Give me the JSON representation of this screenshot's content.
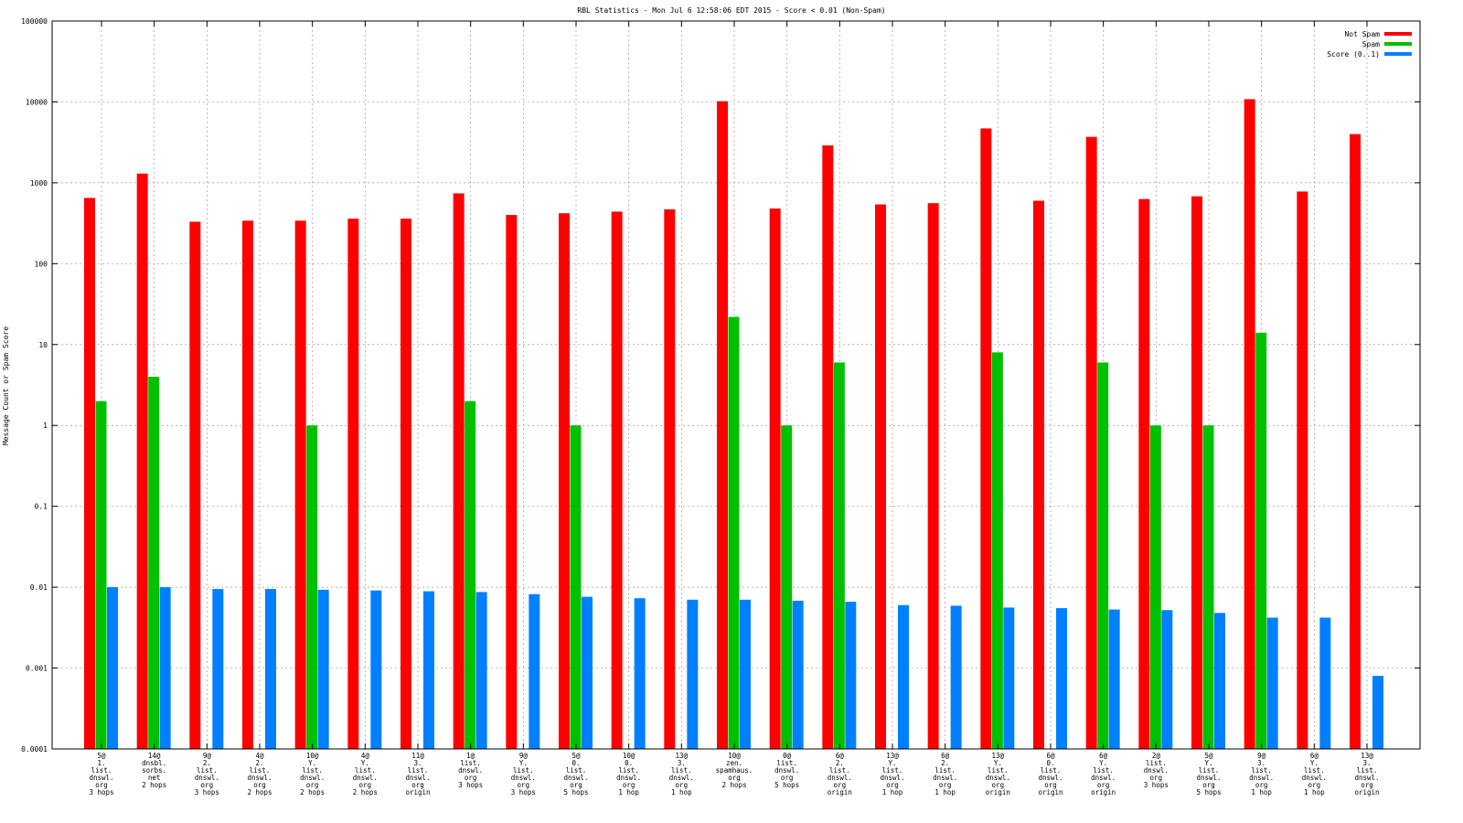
{
  "chart_data": {
    "type": "bar",
    "title": "RBL Statistics - Mon Jul  6 12:58:06 EDT 2015 - Score < 0.01 (Non-Spam)",
    "xlabel": "",
    "ylabel": "Message Count or Spam Score",
    "yscale": "log",
    "ylim": [
      0.0001,
      100000
    ],
    "y_ticks": [
      "0.0001",
      "0.001",
      "0.01",
      "0.1",
      "1",
      "10",
      "100",
      "1000",
      "10000",
      "100000"
    ],
    "grid": true,
    "legend_position": "top-right",
    "categories": [
      [
        "5@",
        "1.",
        "list.",
        "dnswl.",
        "org",
        "3 hops"
      ],
      [
        "14@",
        "dnsbl.",
        "sorbs.",
        "net",
        "2 hops"
      ],
      [
        "9@",
        "2.",
        "list.",
        "dnswl.",
        "org",
        "3 hops"
      ],
      [
        "4@",
        "2.",
        "list.",
        "dnswl.",
        "org",
        "2 hops"
      ],
      [
        "10@",
        "Y.",
        "list.",
        "dnswl.",
        "org",
        "2 hops"
      ],
      [
        "4@",
        "Y.",
        "list.",
        "dnswl.",
        "org",
        "2 hops"
      ],
      [
        "11@",
        "3.",
        "list.",
        "dnswl.",
        "org",
        "origin"
      ],
      [
        "1@",
        "list.",
        "dnswl.",
        "org",
        "3 hops"
      ],
      [
        "9@",
        "Y.",
        "list.",
        "dnswl.",
        "org",
        "3 hops"
      ],
      [
        "5@",
        "0.",
        "list.",
        "dnswl.",
        "org",
        "5 hops"
      ],
      [
        "10@",
        "0.",
        "list.",
        "dnswl.",
        "org",
        "1 hop"
      ],
      [
        "13@",
        "3.",
        "list.",
        "dnswl.",
        "org",
        "1 hop"
      ],
      [
        "10@",
        "zen.",
        "spamhaus.",
        "org",
        "2 hops"
      ],
      [
        "0@",
        "list.",
        "dnswl.",
        "org",
        "5 hops"
      ],
      [
        "6@",
        "2.",
        "list.",
        "dnswl.",
        "org",
        "origin"
      ],
      [
        "13@",
        "Y.",
        "list.",
        "dnswl.",
        "org",
        "1 hop"
      ],
      [
        "6@",
        "2.",
        "list.",
        "dnswl.",
        "org",
        "1 hop"
      ],
      [
        "13@",
        "Y.",
        "list.",
        "dnswl.",
        "org",
        "origin"
      ],
      [
        "6@",
        "0.",
        "list.",
        "dnswl.",
        "org",
        "origin"
      ],
      [
        "6@",
        "Y.",
        "list.",
        "dnswl.",
        "org",
        "origin"
      ],
      [
        "2@",
        "list.",
        "dnswl.",
        "org",
        "3 hops"
      ],
      [
        "5@",
        "Y.",
        "list.",
        "dnswl.",
        "org",
        "5 hops"
      ],
      [
        "9@",
        "3.",
        "list.",
        "dnswl.",
        "org",
        "1 hop"
      ],
      [
        "6@",
        "Y.",
        "list.",
        "dnswl.",
        "org",
        "1 hop"
      ],
      [
        "13@",
        "3.",
        "list.",
        "dnswl.",
        "org",
        "origin"
      ]
    ],
    "series": [
      {
        "name": "Not Spam",
        "color": "#ff0000",
        "values": [
          650,
          1300,
          330,
          340,
          340,
          360,
          360,
          740,
          400,
          420,
          440,
          470,
          10200,
          480,
          2900,
          540,
          560,
          4700,
          600,
          3700,
          630,
          680,
          10800,
          780,
          4000
        ]
      },
      {
        "name": "Spam",
        "color": "#00c000",
        "values": [
          2,
          4,
          null,
          null,
          1,
          null,
          null,
          2,
          null,
          1,
          null,
          null,
          22,
          1,
          6,
          null,
          null,
          8,
          null,
          6,
          1,
          1,
          14,
          null,
          null
        ]
      },
      {
        "name": "Score (0..1)",
        "color": "#0080ff",
        "values": [
          0.01,
          0.01,
          0.0095,
          0.0095,
          0.0093,
          0.0091,
          0.0089,
          0.0087,
          0.0082,
          0.0076,
          0.0073,
          0.007,
          0.007,
          0.0068,
          0.0066,
          0.006,
          0.0059,
          0.0056,
          0.0055,
          0.0053,
          0.0052,
          0.0048,
          0.0042,
          0.0042,
          0.0008
        ]
      }
    ]
  }
}
